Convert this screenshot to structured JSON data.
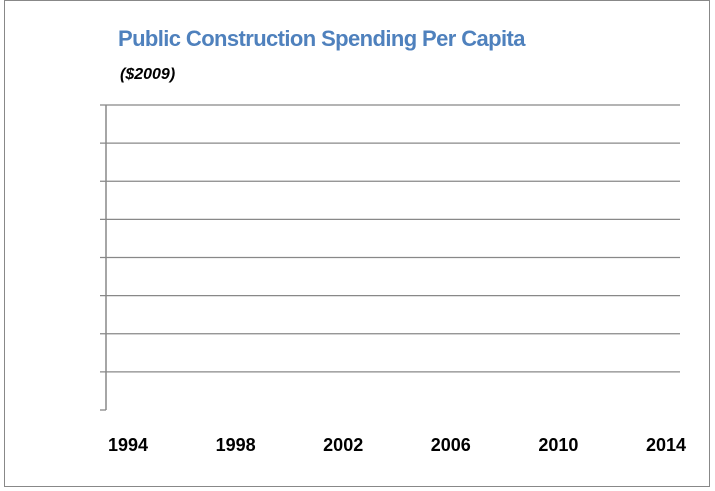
{
  "chart_data": {
    "type": "line",
    "title": "Public Construction Spending Per Capita",
    "subtitle": "($2009)",
    "xlim": [
      1994,
      2014
    ],
    "xticks": [
      1994,
      1998,
      2002,
      2006,
      2010,
      2014
    ],
    "series": [],
    "grid": true
  }
}
